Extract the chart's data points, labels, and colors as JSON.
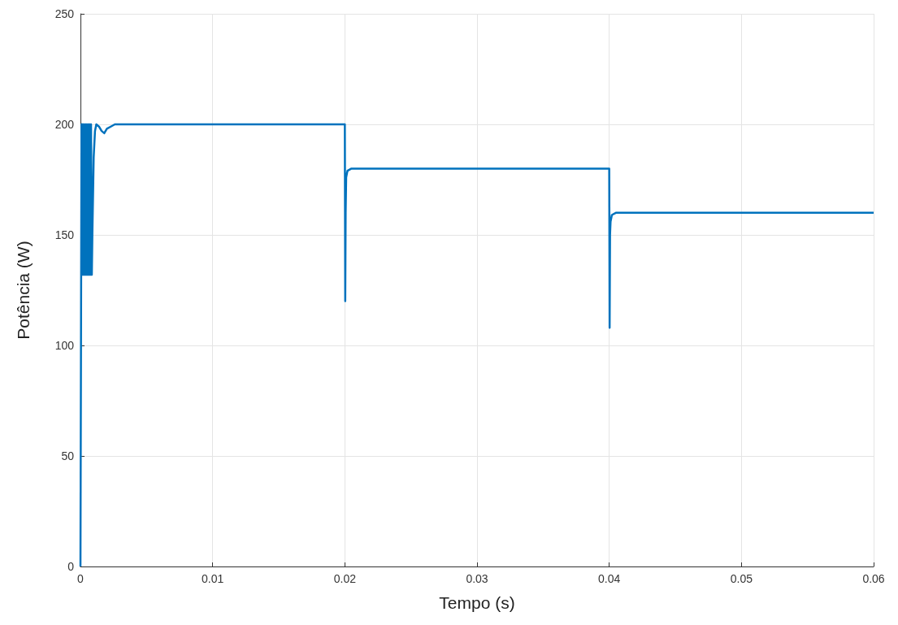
{
  "chart_data": {
    "type": "line",
    "xlabel": "Tempo (s)",
    "ylabel": "Potência (W)",
    "xlim": [
      0,
      0.06
    ],
    "ylim": [
      0,
      250
    ],
    "xticks": [
      0,
      0.01,
      0.02,
      0.03,
      0.04,
      0.05,
      0.06
    ],
    "yticks": [
      0,
      50,
      100,
      150,
      200,
      250
    ],
    "grid": true,
    "marker": "none",
    "line_style": "solid",
    "series": [
      {
        "color": "#0072bd",
        "x": [
          0,
          4e-05,
          8e-05,
          0.0001,
          0.00012,
          0.00015,
          0.00018,
          0.0002,
          0.00024,
          0.00028,
          0.00032,
          0.00036,
          0.0004,
          0.00044,
          0.00048,
          0.00052,
          0.00056,
          0.0006,
          0.00064,
          0.00068,
          0.00072,
          0.00076,
          0.0008,
          0.00086,
          0.0009,
          0.001,
          0.0011,
          0.0012,
          0.0014,
          0.0016,
          0.0018,
          0.002,
          0.0023,
          0.0026,
          0.003,
          0.004,
          0.01,
          0.0199,
          0.02,
          0.02003,
          0.02006,
          0.0201,
          0.0202,
          0.0205,
          0.03,
          0.0399,
          0.04,
          0.04003,
          0.04006,
          0.0401,
          0.0402,
          0.0405,
          0.05,
          0.06
        ],
        "values": [
          0,
          100,
          200,
          132,
          200,
          132,
          200,
          132,
          200,
          132,
          200,
          132,
          200,
          132,
          200,
          132,
          200,
          132,
          200,
          132,
          200,
          132,
          200,
          132,
          150,
          185,
          197,
          200,
          199,
          197,
          196,
          198,
          199,
          200,
          200,
          200,
          200,
          200,
          200,
          120,
          160,
          176,
          179,
          180,
          180,
          180,
          180,
          108,
          150,
          156,
          159,
          160,
          160,
          160
        ]
      }
    ]
  }
}
